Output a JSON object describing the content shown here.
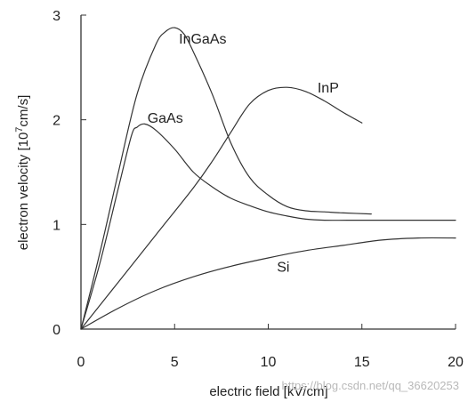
{
  "chart_data": {
    "type": "line",
    "title": "",
    "xlabel": "electric field [kV/cm]",
    "ylabel_main": "electron velocity [10",
    "ylabel_exp": "7",
    "ylabel_unit": "cm/s]",
    "xlim": [
      0,
      20
    ],
    "ylim": [
      0,
      3
    ],
    "xticks": [
      0,
      5,
      10,
      15,
      20
    ],
    "yticks": [
      0,
      1,
      2,
      3
    ],
    "grid": false,
    "legend": "labels placed next to curves",
    "series": [
      {
        "name": "InGaAs",
        "points": [
          [
            0,
            0
          ],
          [
            1,
            0.72
          ],
          [
            2,
            1.5
          ],
          [
            3,
            2.25
          ],
          [
            4,
            2.72
          ],
          [
            4.5,
            2.84
          ],
          [
            5,
            2.88
          ],
          [
            5.5,
            2.82
          ],
          [
            6,
            2.65
          ],
          [
            7,
            2.25
          ],
          [
            8,
            1.78
          ],
          [
            9,
            1.45
          ],
          [
            10,
            1.28
          ],
          [
            11,
            1.17
          ],
          [
            12,
            1.13
          ],
          [
            13,
            1.12
          ],
          [
            14,
            1.11
          ],
          [
            15.5,
            1.1
          ]
        ]
      },
      {
        "name": "GaAs",
        "points": [
          [
            0,
            0
          ],
          [
            1,
            0.62
          ],
          [
            2,
            1.35
          ],
          [
            2.7,
            1.85
          ],
          [
            3,
            1.93
          ],
          [
            3.4,
            1.96
          ],
          [
            4,
            1.9
          ],
          [
            5,
            1.72
          ],
          [
            6,
            1.5
          ],
          [
            7,
            1.36
          ],
          [
            8,
            1.25
          ],
          [
            9,
            1.18
          ],
          [
            10,
            1.12
          ],
          [
            11,
            1.08
          ],
          [
            12,
            1.05
          ],
          [
            13,
            1.04
          ],
          [
            15,
            1.04
          ],
          [
            17.5,
            1.04
          ],
          [
            20,
            1.04
          ]
        ]
      },
      {
        "name": "InP",
        "points": [
          [
            0,
            0
          ],
          [
            2,
            0.45
          ],
          [
            4,
            0.9
          ],
          [
            6,
            1.35
          ],
          [
            7,
            1.6
          ],
          [
            8,
            1.88
          ],
          [
            9,
            2.15
          ],
          [
            10,
            2.28
          ],
          [
            11,
            2.31
          ],
          [
            12,
            2.27
          ],
          [
            13,
            2.18
          ],
          [
            14,
            2.07
          ],
          [
            15,
            1.97
          ]
        ]
      },
      {
        "name": "Si",
        "points": [
          [
            0,
            0
          ],
          [
            2,
            0.2
          ],
          [
            4,
            0.37
          ],
          [
            6,
            0.5
          ],
          [
            8,
            0.6
          ],
          [
            10,
            0.68
          ],
          [
            12,
            0.75
          ],
          [
            14,
            0.8
          ],
          [
            16,
            0.85
          ],
          [
            18,
            0.87
          ],
          [
            20,
            0.87
          ]
        ]
      }
    ],
    "labels": {
      "InGaAs": "InGaAs",
      "GaAs": "GaAs",
      "InP": "InP",
      "Si": "Si"
    },
    "watermark": "https://blog.csdn.net/qq_36620253"
  }
}
